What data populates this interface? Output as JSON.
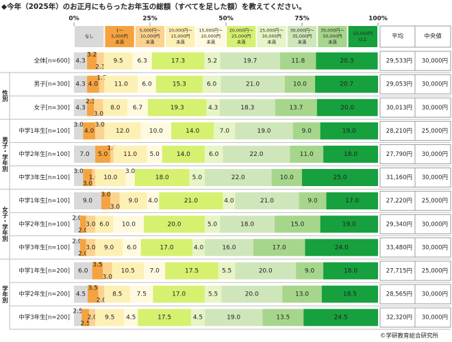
{
  "chart_data": {
    "type": "bar",
    "orientation": "horizontal",
    "stacked": true,
    "title": "◆今年（2025年）のお正月にもらったお年玉の総額（すべてを足した額）を教えてください。",
    "categories": [
      "全体[n=600]",
      "男子[n=300]",
      "女子[n=300]",
      "中学1年生[n=100]",
      "中学2年生[n=100]",
      "中学3年生[n=100]",
      "中学1年生[n=100]",
      "中学2年生[n=100]",
      "中学3年生[n=100]",
      "中学1年生[n=200]",
      "中学2年生[n=200]",
      "中学3年生[n=200]"
    ],
    "category_groups": [
      null,
      "性別",
      "性別",
      "男子・学年別",
      "男子・学年別",
      "男子・学年別",
      "女子・学年別",
      "女子・学年別",
      "女子・学年別",
      "学年別",
      "学年別",
      "学年別"
    ],
    "xlim": [
      0,
      100
    ],
    "xticks": [
      {
        "value": 0,
        "label": "0%"
      },
      {
        "value": 25,
        "label": "25%"
      },
      {
        "value": 50,
        "label": "50%"
      },
      {
        "value": 75,
        "label": "75%"
      },
      {
        "value": 100,
        "label": "100%"
      }
    ],
    "series": [
      {
        "name": "なし",
        "color": "#d9d9d9",
        "values": [
          4.3,
          4.3,
          4.3,
          3,
          7,
          3,
          9,
          2,
          2,
          6,
          4.5,
          2.5
        ],
        "value_labels": [
          "4.3",
          "4.3",
          "4.3",
          "3.0",
          "7.0",
          "3.0",
          "9.0",
          "2.0",
          "2.0",
          "6.0",
          "4.5",
          "2.5"
        ]
      },
      {
        "name": "1～\n5,000円\n未満",
        "color": "#f5a340",
        "values": [
          3.2,
          4.0,
          2.3,
          4,
          5,
          3,
          3,
          2,
          2,
          3.5,
          3.5,
          2.5
        ],
        "value_labels": [
          "3.2",
          "4.0",
          "2.3",
          "4.0",
          "5.0",
          "3.0",
          "3.0",
          "2.0",
          "2.0",
          "3.5",
          "3.5",
          "2.5"
        ]
      },
      {
        "name": "5,000円～\n10,000円\n未満",
        "color": "#fbd28e",
        "values": [
          2.3,
          1.7,
          3.0,
          3,
          1,
          1,
          3,
          3,
          3,
          3,
          2,
          2
        ],
        "value_labels": [
          "2.3",
          "1.7",
          "3.0",
          "3.0",
          "1.0",
          "1.0",
          "3.0",
          "3.0",
          "3.0",
          "3.0",
          "2.0",
          "2.0"
        ]
      },
      {
        "name": "10,000円～\n15,000円\n未満",
        "color": "#fdf0b4",
        "values": [
          9.5,
          11,
          8,
          12,
          11,
          10,
          9,
          6,
          9,
          10.5,
          8.5,
          9.5
        ],
        "value_labels": [
          "9.5",
          "11.0",
          "8.0",
          "12.0",
          "11.0",
          "10.0",
          "9.0",
          "6.0",
          "9.0",
          "10.5",
          "8.5",
          "9.5"
        ]
      },
      {
        "name": "15,000円～\n20,000円\n未満",
        "color": "#fffadf",
        "values": [
          6.3,
          6,
          6.7,
          10,
          5,
          3,
          4,
          10,
          6,
          7,
          7.5,
          4.5
        ],
        "value_labels": [
          "6.3",
          "6.0",
          "6.7",
          "10.0",
          "5.0",
          "3.0",
          "4.0",
          "10.0",
          "6.0",
          "7.0",
          "7.5",
          "4.5"
        ]
      },
      {
        "name": "20,000円～\n25,000円\n未満",
        "color": "#d6f06f",
        "values": [
          17.3,
          15.3,
          19.3,
          14,
          14,
          18,
          21,
          20,
          17,
          17.5,
          17,
          17.5
        ],
        "value_labels": [
          "17.3",
          "15.3",
          "19.3",
          "14.0",
          "14.0",
          "18.0",
          "21.0",
          "20.0",
          "17.0",
          "17.5",
          "17.0",
          "17.5"
        ]
      },
      {
        "name": "25,000円～\n30,000円\n未満",
        "color": "#e7f4c6",
        "values": [
          5.2,
          6,
          4.3,
          7,
          6,
          5,
          4,
          5,
          4,
          5.5,
          5.5,
          4.5
        ],
        "value_labels": [
          "5.2",
          "6.0",
          "4.3",
          "7.0",
          "6.0",
          "5.0",
          "4.0",
          "5.0",
          "4.0",
          "5.5",
          "5.5",
          "4.5"
        ]
      },
      {
        "name": "30,000円～\n35,000円\n未満",
        "color": "#cfe6ba",
        "values": [
          19.7,
          21,
          18.3,
          19,
          22,
          22,
          21,
          18,
          16,
          20,
          20,
          19
        ],
        "value_labels": [
          "19.7",
          "21.0",
          "18.3",
          "19.0",
          "22.0",
          "22.0",
          "21.0",
          "18.0",
          "16.0",
          "20.0",
          "20.0",
          "19.0"
        ]
      },
      {
        "name": "35,000円～\n50,000円\n未満",
        "color": "#a6d68b",
        "values": [
          11.8,
          10,
          13.7,
          9,
          11,
          10,
          9,
          15,
          17,
          9,
          13,
          13.5
        ],
        "value_labels": [
          "11.8",
          "10.0",
          "13.7",
          "9.0",
          "11.0",
          "10.0",
          "9.0",
          "15.0",
          "17.0",
          "9.0",
          "13.0",
          "13.5"
        ]
      },
      {
        "name": "50,000円\n以上",
        "color": "#16a03e",
        "values": [
          20.3,
          20.7,
          20,
          19,
          18,
          25,
          17,
          19,
          24,
          18,
          18.5,
          24.5
        ],
        "value_labels": [
          "20.3",
          "20.7",
          "20.0",
          "19.0",
          "18.0",
          "25.0",
          "17.0",
          "19.0",
          "24.0",
          "18.0",
          "18.5",
          "24.5"
        ]
      }
    ],
    "table": {
      "columns": [
        "平均",
        "中央値"
      ],
      "rows": [
        [
          "29,533円",
          "30,000円"
        ],
        [
          "29,053円",
          "30,000円"
        ],
        [
          "30,013円",
          "30,000円"
        ],
        [
          "28,210円",
          "25,000円"
        ],
        [
          "27,790円",
          "30,000円"
        ],
        [
          "31,160円",
          "30,000円"
        ],
        [
          "27,220円",
          "25,000円"
        ],
        [
          "29,340円",
          "30,000円"
        ],
        [
          "33,480円",
          "30,000円"
        ],
        [
          "27,715円",
          "25,000円"
        ],
        [
          "28,565円",
          "30,000円"
        ],
        [
          "32,320円",
          "30,000円"
        ]
      ]
    },
    "footer": "©学研教育総合研究所"
  }
}
